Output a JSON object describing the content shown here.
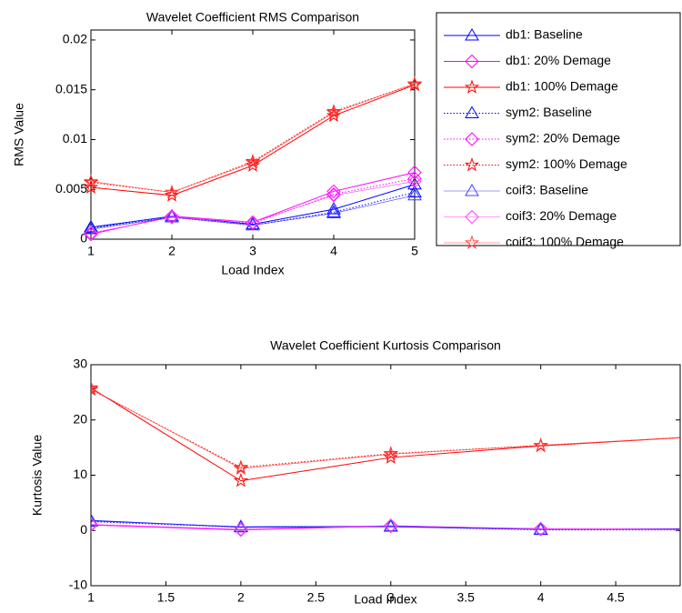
{
  "chart_data": [
    {
      "type": "line",
      "title": "Wavelet Coefficient RMS Comparison",
      "xlabel": "Load Index",
      "ylabel": "RMS Value",
      "x": [
        1,
        2,
        3,
        4,
        5
      ],
      "xlim": [
        1,
        5
      ],
      "xticks": [
        1,
        2,
        3,
        4,
        5
      ],
      "ylim": [
        0,
        0.021
      ],
      "yticks": [
        0,
        0.005,
        0.01,
        0.015,
        0.02
      ],
      "legend": "outside-right",
      "series": [
        {
          "name": "db1: Baseline",
          "color": "#0000ff",
          "marker": "triangle",
          "linestyle": "solid",
          "values": [
            0.0012,
            0.0023,
            0.0015,
            0.003,
            0.0055
          ]
        },
        {
          "name": "db1: 20% Demage",
          "color": "#ff00ff",
          "marker": "diamond",
          "linestyle": "solid",
          "values": [
            0.0005,
            0.0023,
            0.0017,
            0.0048,
            0.0067
          ]
        },
        {
          "name": "db1: 100% Demage",
          "color": "#ff0000",
          "marker": "star",
          "linestyle": "solid",
          "values": [
            0.0052,
            0.0044,
            0.0074,
            0.0124,
            0.0155
          ]
        },
        {
          "name": "sym2: Baseline",
          "color": "#0000ff",
          "marker": "triangle",
          "linestyle": "dotted",
          "values": [
            0.0011,
            0.0022,
            0.0014,
            0.0027,
            0.0047
          ]
        },
        {
          "name": "sym2: 20% Demage",
          "color": "#ff00ff",
          "marker": "diamond",
          "linestyle": "dotted",
          "values": [
            0.0006,
            0.0022,
            0.0016,
            0.0045,
            0.0061
          ]
        },
        {
          "name": "sym2: 100% Demage",
          "color": "#ff0000",
          "marker": "star",
          "linestyle": "dotted",
          "values": [
            0.0057,
            0.0047,
            0.0078,
            0.0128,
            0.0156
          ]
        },
        {
          "name": "coif3: Baseline",
          "color": "#4040ff",
          "marker": "triangle",
          "linestyle": "thin",
          "values": [
            0.001,
            0.0022,
            0.0014,
            0.0026,
            0.0044
          ]
        },
        {
          "name": "coif3: 20% Demage",
          "color": "#ff40ff",
          "marker": "diamond",
          "linestyle": "thin",
          "values": [
            0.0006,
            0.0022,
            0.0017,
            0.0044,
            0.0058
          ]
        },
        {
          "name": "coif3: 100% Demage",
          "color": "#ff4040",
          "marker": "star",
          "linestyle": "thin",
          "values": [
            0.0058,
            0.0047,
            0.0077,
            0.0127,
            0.0156
          ]
        }
      ]
    },
    {
      "type": "line",
      "title": "Wavelet Coefficient Kurtosis Comparison",
      "xlabel": "Load Index",
      "ylabel": "Kurtosis Value",
      "x": [
        1,
        2,
        3,
        4,
        5
      ],
      "xlim": [
        1,
        4.93
      ],
      "xticks": [
        1,
        1.5,
        2,
        2.5,
        3,
        3.5,
        4,
        4.5
      ],
      "ylim": [
        -10,
        30
      ],
      "yticks": [
        -10,
        0,
        10,
        20,
        30
      ],
      "series": [
        {
          "color": "#0000ff",
          "marker": "triangle",
          "linestyle": "solid",
          "values": [
            1.8,
            0.6,
            0.7,
            0.2,
            0.3
          ]
        },
        {
          "color": "#ff00ff",
          "marker": "diamond",
          "linestyle": "solid",
          "values": [
            1.0,
            0.1,
            0.8,
            0.3,
            0.2
          ]
        },
        {
          "color": "#ff0000",
          "marker": "star",
          "linestyle": "solid",
          "values": [
            25.8,
            9,
            13.2,
            15.3,
            16.9
          ]
        },
        {
          "color": "#0000ff",
          "marker": "triangle",
          "linestyle": "dotted",
          "values": [
            1.6,
            0.6,
            0.7,
            0.1,
            0.1
          ]
        },
        {
          "color": "#ff00ff",
          "marker": "diamond",
          "linestyle": "dotted",
          "values": [
            1.0,
            0.2,
            0.8,
            0.2,
            0.1
          ]
        },
        {
          "color": "#ff0000",
          "marker": "star",
          "linestyle": "dotted",
          "values": [
            25.5,
            11.4,
            13.9,
            15.4,
            16.9
          ]
        },
        {
          "color": "#4040ff",
          "marker": "triangle",
          "linestyle": "thin",
          "values": [
            1.7,
            0.7,
            0.8,
            0.2,
            0.2
          ]
        },
        {
          "color": "#ff40ff",
          "marker": "diamond",
          "linestyle": "thin",
          "values": [
            1.1,
            0.2,
            0.9,
            0.3,
            0.2
          ]
        },
        {
          "color": "#ff4040",
          "marker": "star",
          "linestyle": "thin",
          "values": [
            25.6,
            11.2,
            13.8,
            15.4,
            16.9
          ]
        }
      ]
    }
  ]
}
